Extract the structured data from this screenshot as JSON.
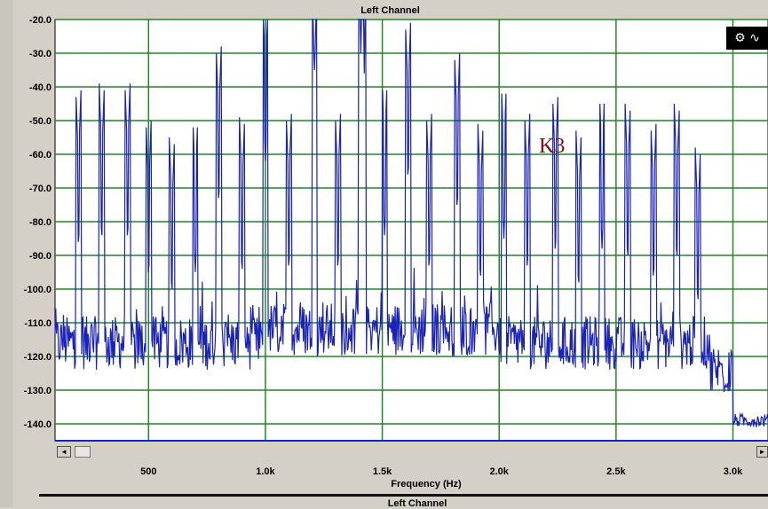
{
  "chart_data": {
    "type": "line",
    "title": "Left Channel",
    "xlabel": "Frequency (Hz)",
    "ylabel": "",
    "xlim": [
      100,
      3150
    ],
    "ylim": [
      -145,
      -20
    ],
    "x_tick_values": [
      500,
      1000,
      1500,
      2000,
      2500,
      3000
    ],
    "x_tick_labels": [
      "500",
      "1.0k",
      "1.5k",
      "2.0k",
      "2.5k",
      "3.0k"
    ],
    "y_ticks": [
      -20,
      -30,
      -40,
      -50,
      -60,
      -70,
      -80,
      -90,
      -100,
      -110,
      -120,
      -130,
      -140
    ],
    "y_tick_labels": [
      "-20.0",
      "-30.0",
      "-40.0",
      "-50.0",
      "-60.0",
      "-70.0",
      "-80.0",
      "-90.0",
      "-100.0",
      "-110.0",
      "-120.0",
      "-130.0",
      "-140.0"
    ],
    "grid": true,
    "annotation": "K3",
    "peaks": [
      {
        "x": 200,
        "y": -88
      },
      {
        "x": 300,
        "y": -86
      },
      {
        "x": 410,
        "y": -86
      },
      {
        "x": 500,
        "y": -97
      },
      {
        "x": 600,
        "y": -102
      },
      {
        "x": 700,
        "y": -95
      },
      {
        "x": 800,
        "y": -75
      },
      {
        "x": 900,
        "y": -96
      },
      {
        "x": 1000,
        "y": -62
      },
      {
        "x": 1100,
        "y": -95
      },
      {
        "x": 1210,
        "y": -35
      },
      {
        "x": 1310,
        "y": -95
      },
      {
        "x": 1410,
        "y": -34
      },
      {
        "x": 1420,
        "y": -42
      },
      {
        "x": 1510,
        "y": -84
      },
      {
        "x": 1610,
        "y": -68
      },
      {
        "x": 1700,
        "y": -95
      },
      {
        "x": 1820,
        "y": -77
      },
      {
        "x": 1920,
        "y": -98
      },
      {
        "x": 2020,
        "y": -85
      },
      {
        "x": 2120,
        "y": -95
      },
      {
        "x": 2240,
        "y": -90
      },
      {
        "x": 2340,
        "y": -100
      },
      {
        "x": 2440,
        "y": -88
      },
      {
        "x": 2550,
        "y": -92
      },
      {
        "x": 2660,
        "y": -98
      },
      {
        "x": 2760,
        "y": -92
      },
      {
        "x": 2850,
        "y": -105
      }
    ],
    "series": [
      {
        "color": "#1a22b8"
      }
    ]
  },
  "ui": {
    "toolbar_icon": "chart-options-icon",
    "scroll_left": "◄",
    "scroll_right": "►",
    "bottom_title": "Left Channel"
  }
}
